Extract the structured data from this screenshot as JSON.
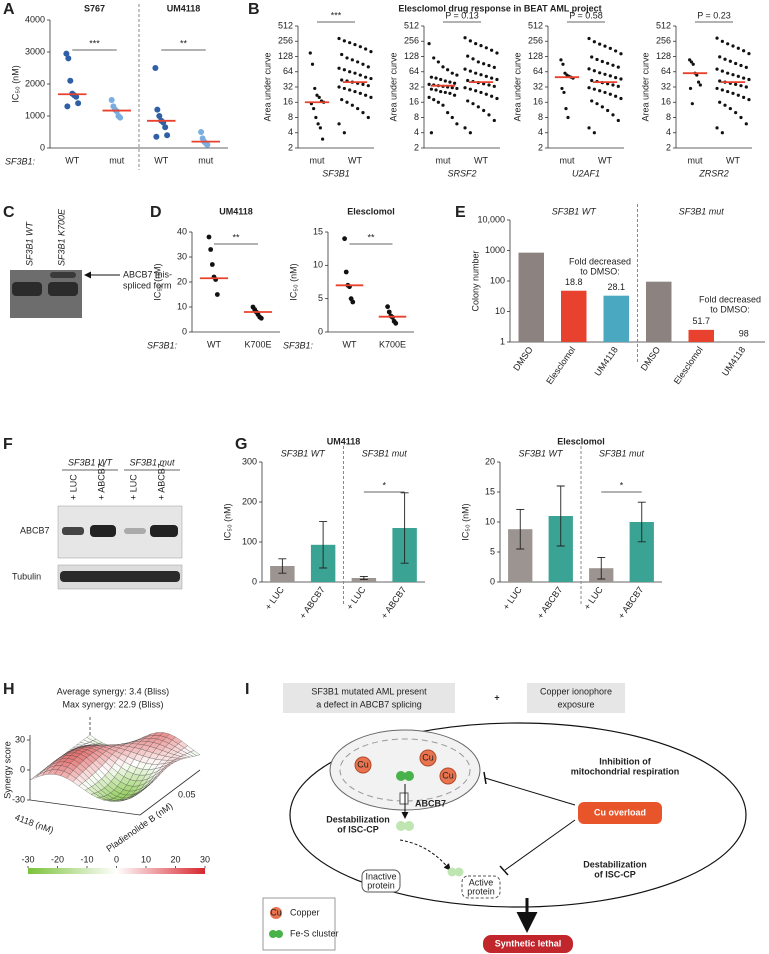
{
  "panel_labels": [
    "A",
    "B",
    "C",
    "D",
    "E",
    "F",
    "G",
    "H",
    "I"
  ],
  "panel_B_title": "Elesclomol drug response in BEAT AML project",
  "chart_data": [
    {
      "type": "dotplot",
      "group_titles": [
        "S767",
        "UM4118"
      ],
      "categories": [
        "WT",
        "mut",
        "WT",
        "mut"
      ],
      "row_label": "SF3B1:",
      "ylabel": "IC₅₀ (nM)",
      "ylim": [
        0,
        4000
      ],
      "yticks": [
        0,
        1000,
        2000,
        3000,
        4000
      ],
      "colors": [
        "#2f5fa5",
        "#7aaee0",
        "#2f5fa5",
        "#7aaee0"
      ],
      "median_color": "#e8412e",
      "points": [
        [
          2950,
          2800,
          2100,
          1700,
          1650,
          1600,
          1400,
          1300
        ],
        [
          1500,
          1300,
          1200,
          1150,
          1000,
          950
        ],
        [
          2500,
          1200,
          1000,
          850,
          800,
          650,
          400,
          350
        ],
        [
          500,
          300,
          200,
          150,
          100
        ]
      ],
      "medians": [
        1680,
        1170,
        850,
        200
      ],
      "significance": [
        "***",
        "**"
      ]
    },
    {
      "type": "dotplot",
      "categories": [
        "mut",
        "WT"
      ],
      "xlabel": "SF3B1",
      "ylabel": "Area under curve",
      "log_base": 2,
      "ylim": [
        2,
        512
      ],
      "yticks": [
        2,
        4,
        8,
        16,
        32,
        64,
        128,
        256,
        512
      ],
      "colors": [
        "#111111",
        "#111111"
      ],
      "median_color": "#e8412e",
      "points": [
        [
          150,
          90,
          30,
          22,
          20,
          17,
          16,
          15,
          12,
          8,
          6,
          5,
          3
        ],
        [
          290,
          260,
          240,
          220,
          200,
          180,
          160,
          140,
          120,
          110,
          100,
          90,
          80,
          75,
          70,
          64,
          60,
          55,
          50,
          47,
          44,
          42,
          40,
          38,
          36,
          34,
          32,
          30,
          28,
          26,
          24,
          22,
          20,
          18,
          16,
          14,
          12,
          10,
          8,
          6,
          4
        ]
      ],
      "medians": [
        16,
        40
      ],
      "significance": [
        "***"
      ]
    },
    {
      "type": "dotplot",
      "categories": [
        "mut",
        "WT"
      ],
      "xlabel": "SRSF2",
      "ylabel": "Area under curve",
      "log_base": 2,
      "ylim": [
        2,
        512
      ],
      "yticks": [
        2,
        4,
        8,
        16,
        32,
        64,
        128,
        256,
        512
      ],
      "colors": [
        "#111111",
        "#111111"
      ],
      "median_color": "#e8412e",
      "points": [
        [
          230,
          120,
          100,
          80,
          70,
          60,
          55,
          50,
          48,
          45,
          42,
          40,
          38,
          36,
          35,
          34,
          33,
          32,
          31,
          30,
          29,
          28,
          26,
          25,
          24,
          22,
          20,
          18,
          16,
          14,
          10,
          8,
          6,
          4
        ],
        [
          300,
          260,
          230,
          210,
          190,
          170,
          150,
          130,
          115,
          100,
          92,
          85,
          78,
          72,
          66,
          60,
          56,
          52,
          48,
          45,
          43,
          41,
          39,
          37,
          35,
          33,
          31,
          29,
          27,
          25,
          23,
          21,
          19,
          17,
          15,
          13,
          11,
          9,
          7,
          5,
          4
        ]
      ],
      "medians": [
        34,
        40
      ],
      "significance": [
        "P = 0.13"
      ]
    },
    {
      "type": "dotplot",
      "categories": [
        "mut",
        "WT"
      ],
      "xlabel": "U2AF1",
      "ylabel": "Area under curve",
      "log_base": 2,
      "ylim": [
        2,
        512
      ],
      "yticks": [
        2,
        4,
        8,
        16,
        32,
        64,
        128,
        256,
        512
      ],
      "colors": [
        "#111111",
        "#111111"
      ],
      "median_color": "#e8412e",
      "points": [
        [
          110,
          90,
          60,
          55,
          52,
          50,
          48,
          30,
          25,
          12,
          8
        ],
        [
          290,
          250,
          225,
          205,
          185,
          165,
          145,
          125,
          112,
          102,
          94,
          86,
          79,
          73,
          67,
          61,
          57,
          53,
          49,
          46,
          43,
          41,
          39,
          37,
          35,
          33,
          31,
          29,
          27,
          25,
          23,
          21,
          19,
          17,
          15,
          13,
          11,
          9,
          7,
          5,
          4
        ]
      ],
      "medians": [
        50,
        40
      ],
      "significance": [
        "P = 0.58"
      ]
    },
    {
      "type": "dotplot",
      "categories": [
        "mut",
        "WT"
      ],
      "xlabel": "ZRSR2",
      "ylabel": "Area under curve",
      "log_base": 2,
      "ylim": [
        2,
        512
      ],
      "yticks": [
        2,
        4,
        8,
        16,
        32,
        64,
        128,
        256,
        512
      ],
      "colors": [
        "#111111",
        "#111111"
      ],
      "median_color": "#e8412e",
      "points": [
        [
          110,
          100,
          90,
          60,
          55,
          40,
          35,
          30,
          15
        ],
        [
          295,
          255,
          228,
          206,
          186,
          166,
          146,
          126,
          113,
          103,
          93,
          85,
          78,
          72,
          66,
          60,
          56,
          52,
          48,
          45,
          42,
          40,
          38,
          36,
          34,
          32,
          30,
          28,
          26,
          24,
          22,
          20,
          18,
          16,
          14,
          12,
          10,
          8,
          6,
          5,
          4
        ]
      ],
      "medians": [
        60,
        40
      ],
      "significance": [
        "P = 0.23"
      ]
    },
    {
      "type": "dotplot",
      "title": "UM4118",
      "categories": [
        "WT",
        "K700E"
      ],
      "row_label": "SF3B1:",
      "ylabel": "IC₅₀ (nM)",
      "ylim": [
        0,
        40
      ],
      "yticks": [
        0,
        10,
        20,
        30,
        40
      ],
      "colors": [
        "#111111",
        "#111111"
      ],
      "median_color": "#e8412e",
      "points": [
        [
          38,
          33,
          27,
          22,
          21,
          15
        ],
        [
          10,
          9,
          8,
          7,
          6,
          5.5
        ]
      ],
      "medians": [
        21.5,
        8
      ],
      "significance": [
        "**"
      ]
    },
    {
      "type": "dotplot",
      "title": "Elesclomol",
      "categories": [
        "WT",
        "K700E"
      ],
      "row_label": "SF3B1:",
      "ylabel": "IC₅₀ (nM)",
      "ylim": [
        0,
        15
      ],
      "yticks": [
        0,
        5,
        10,
        15
      ],
      "colors": [
        "#111111",
        "#111111"
      ],
      "median_color": "#e8412e",
      "points": [
        [
          14,
          9,
          7,
          6.8,
          5,
          4.5
        ],
        [
          3.8,
          3,
          2.4,
          2.2,
          1.6,
          1.3
        ]
      ],
      "medians": [
        7,
        2.3
      ],
      "significance": [
        "**"
      ]
    },
    {
      "type": "bar",
      "group_titles": [
        "SF3B1 WT",
        "SF3B1 mut"
      ],
      "categories": [
        "DMSO",
        "Elesclomol",
        "UM4118",
        "DMSO",
        "Elesclomol",
        "UM4118"
      ],
      "values": [
        850,
        48,
        33,
        95,
        2.5,
        1
      ],
      "colors": [
        "#8c8380",
        "#e8412e",
        "#4aa8c0",
        "#8c8380",
        "#e8412e",
        "#4aa8c0"
      ],
      "log_scale": true,
      "ylim": [
        1,
        10000
      ],
      "yticks": [
        1,
        10,
        100,
        1000,
        {
          "value": 10000,
          "label": "10,000"
        }
      ],
      "ylabel": "Colony number",
      "fold_labels": [
        null,
        18.8,
        28.1,
        null,
        51.7,
        98
      ],
      "fold_note": [
        "Fold decreased",
        "to DMSO:"
      ]
    },
    {
      "type": "bar",
      "title": "UM4118",
      "group_titles": [
        "SF3B1 WT",
        "SF3B1 mut"
      ],
      "categories": [
        "+ LUC",
        "+ ABCB7",
        "+ LUC",
        "+ ABCB7"
      ],
      "values": [
        40,
        93,
        10,
        135
      ],
      "errors": [
        18,
        58,
        4,
        88
      ],
      "colors": [
        "#9c9490",
        "#3aa394",
        "#9c9490",
        "#3aa394"
      ],
      "ylim": [
        0,
        300
      ],
      "yticks": [
        0,
        100,
        200,
        300
      ],
      "ylabel": "IC₅₀ (nM)",
      "significance": [
        "*"
      ]
    },
    {
      "type": "bar",
      "title": "Elesclomol",
      "group_titles": [
        "SF3B1 WT",
        "SF3B1 mut"
      ],
      "categories": [
        "+ LUC",
        "+ ABCB7",
        "+ LUC",
        "+ ABCB7"
      ],
      "values": [
        8.8,
        11,
        2.3,
        10
      ],
      "errors": [
        3.3,
        5,
        1.8,
        3.3
      ],
      "colors": [
        "#9c9490",
        "#3aa394",
        "#9c9490",
        "#3aa394"
      ],
      "ylim": [
        0,
        20
      ],
      "yticks": [
        0,
        5,
        10,
        15,
        20
      ],
      "ylabel": "IC₅₀ (nM)",
      "significance": [
        "*"
      ]
    }
  ],
  "blot_C": {
    "lanes": [
      "SF3B1 WT",
      "SF3B1 K700E"
    ],
    "annotation": [
      "ABCB7 mis-",
      "spliced form"
    ]
  },
  "blot_F": {
    "groups": [
      "SF3B1 WT",
      "SF3B1 mut"
    ],
    "lanes": [
      "+ LUC",
      "+ ABCB7",
      "+ LUC",
      "+ ABCB7"
    ],
    "rows": [
      "ABCB7",
      "Tubulin"
    ]
  },
  "surface_H": {
    "lines": [
      "Average synergy: 3.4 (Bliss)",
      "Max synergy: 22.9 (Bliss)"
    ],
    "zlabel": "Synergy score",
    "xlabel": "Pladienolide B (nM)",
    "ylabel": "4118 (nM)",
    "zticks": [
      30,
      0,
      -30
    ],
    "xtick": 0.05,
    "colorbar_ticks": [
      -30,
      -20,
      -10,
      0,
      10,
      20,
      30
    ]
  },
  "diagram_I": {
    "premise": [
      "SF3B1 mutated AML present",
      "a defect in ABCB7 splicing"
    ],
    "plus": "+",
    "exposure": [
      "Copper ionophore",
      "exposure"
    ],
    "cu": "Cu",
    "abcb7": "ABCB7",
    "destab_left": [
      "Destabilization",
      "of ISC-CP"
    ],
    "inhibition": [
      "Inhibition of",
      "mitochondrial respiration"
    ],
    "overload": "Cu overload",
    "destab_right": [
      "Destabilization",
      "of ISC-CP"
    ],
    "inactive": [
      "Inactive",
      "protein"
    ],
    "active": [
      "Active",
      "protein"
    ],
    "legend": [
      "Copper",
      "Fe-S cluster"
    ],
    "outcome": "Synthetic lethal"
  }
}
